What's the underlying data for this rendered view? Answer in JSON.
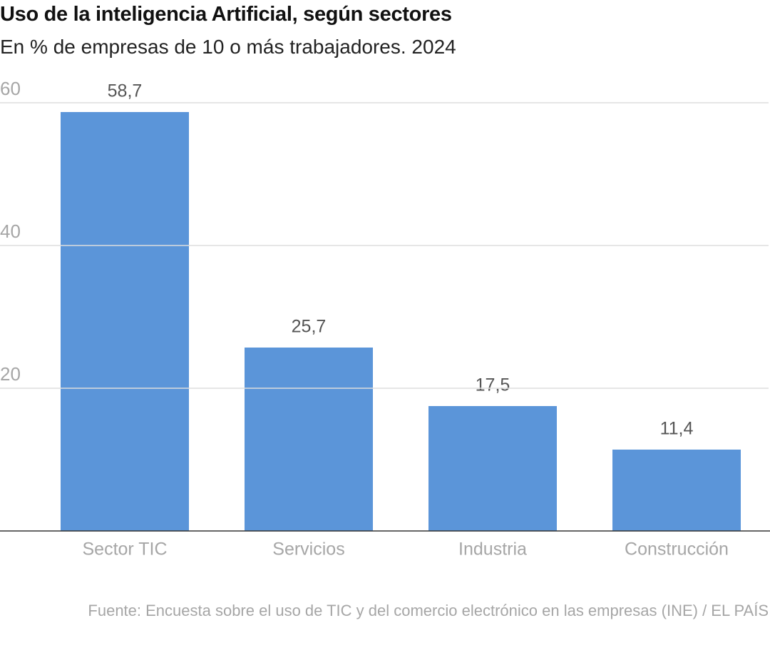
{
  "chart_data": {
    "type": "bar",
    "title": "Uso de la inteligencia Artificial, según sectores",
    "subtitle": "En % de empresas de 10 o más trabajadores. 2024",
    "source": "Fuente: Encuesta sobre el uso de TIC y del comercio electrónico en las empresas (INE) / EL PAÍS",
    "categories": [
      "Sector TIC",
      "Servicios",
      "Industria",
      "Construcción"
    ],
    "values": [
      58.7,
      25.7,
      17.5,
      11.4
    ],
    "value_labels": [
      "58,7",
      "25,7",
      "17,5",
      "11,4"
    ],
    "color": "#5b95d9",
    "ylim": [
      0,
      60
    ],
    "yticks": [
      20,
      40,
      60
    ],
    "grid": true
  }
}
